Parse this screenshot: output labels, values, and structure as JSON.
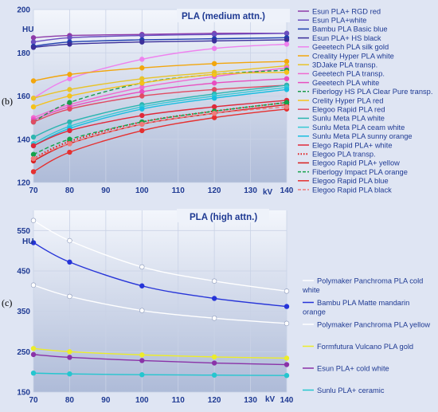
{
  "chart_data": [
    {
      "type": "line",
      "panel_label": "(b)",
      "title": "PLA (medium attn.)",
      "ylabel": "HU",
      "xlabel": "kV",
      "x": [
        70,
        80,
        100,
        120,
        140
      ],
      "xlim": [
        70,
        140
      ],
      "ylim": [
        120,
        200
      ],
      "yticks": [
        120,
        140,
        160,
        180,
        200
      ],
      "xticks": [
        70,
        80,
        90,
        100,
        110,
        120,
        130,
        140
      ],
      "grid": true,
      "legend_position": "right",
      "series": [
        {
          "name": "Esun PLA+ RGD red",
          "color": "#8e3aa8",
          "dash": "solid",
          "values": [
            187,
            188,
            188.5,
            189,
            189
          ]
        },
        {
          "name": "Esun PLA+white",
          "color": "#6a4fc0",
          "dash": "solid",
          "values": [
            185,
            187,
            188,
            188.5,
            189
          ]
        },
        {
          "name": "Bambu PLA Basic blue",
          "color": "#1f3fae",
          "dash": "solid",
          "values": [
            183,
            185,
            186,
            186.5,
            187
          ]
        },
        {
          "name": "Esun PLA+ HS black",
          "color": "#3a2e9a",
          "dash": "solid",
          "values": [
            182.5,
            184,
            185,
            185.5,
            186
          ]
        },
        {
          "name": "Geeetech PLA silk gold",
          "color": "#ee82ee",
          "dash": "solid",
          "values": [
            159,
            168,
            177,
            182,
            184
          ]
        },
        {
          "name": "Creality Hyper PLA white",
          "color": "#f2a60d",
          "dash": "solid",
          "values": [
            167,
            170,
            173,
            175,
            176
          ]
        },
        {
          "name": "3DJake PLA transp.",
          "color": "#e8c32a",
          "dash": "solid",
          "values": [
            159,
            163,
            168,
            171,
            174
          ]
        },
        {
          "name": "Geeetech PLA transp.",
          "color": "#f06ad0",
          "dash": "solid",
          "values": [
            150,
            156,
            164,
            169,
            173
          ]
        },
        {
          "name": "Geeetech PLA white",
          "color": "#e84ec0",
          "dash": "solid",
          "values": [
            149,
            155,
            162,
            166,
            168
          ]
        },
        {
          "name": "Fiberlogy HS PLA Clear Pure transp.",
          "color": "#1a9a4a",
          "dash": "dashed",
          "values": [
            148,
            157,
            166,
            170,
            172
          ]
        },
        {
          "name": "Crelity Hyper PLA red",
          "color": "#f5c21b",
          "dash": "solid",
          "values": [
            155,
            160,
            166,
            170,
            171
          ]
        },
        {
          "name": "Elegoo Rapid PLA red",
          "color": "#e04b63",
          "dash": "solid",
          "values": [
            148,
            154,
            160,
            163,
            165
          ]
        },
        {
          "name": "Sunlu Meta PLA white",
          "color": "#2cb5b0",
          "dash": "solid",
          "values": [
            141,
            148,
            156,
            161,
            165
          ]
        },
        {
          "name": "Sunlu Meta PLA ceam white",
          "color": "#35c9d4",
          "dash": "solid",
          "values": [
            138,
            146,
            155,
            160,
            164
          ]
        },
        {
          "name": "Sunlu Meta PLA sunny orange",
          "color": "#19bde0",
          "dash": "solid",
          "values": [
            137,
            145,
            154,
            159,
            163
          ]
        },
        {
          "name": "Elego Rapid PLA+ white",
          "color": "#e0283a",
          "dash": "solid",
          "values": [
            137,
            144,
            151,
            155,
            158
          ]
        },
        {
          "name": "Elegoo PLA transp.",
          "color": "#e01b1b",
          "dash": "dotted",
          "values": [
            131,
            139,
            148,
            153,
            157
          ]
        },
        {
          "name": "Elegoo Rapid PLA+ yellow",
          "color": "#d81e1e",
          "dash": "solid",
          "values": [
            130,
            138,
            147,
            152,
            156
          ]
        },
        {
          "name": "Fiberlogy Impact PLA orange",
          "color": "#13a34a",
          "dash": "dashed",
          "values": [
            133,
            140,
            148,
            153,
            157
          ]
        },
        {
          "name": "Elegoo Rapid PLA blue",
          "color": "#e53030",
          "dash": "solid",
          "values": [
            125,
            134,
            144,
            150,
            154
          ]
        },
        {
          "name": "Elegoo Rapid PLA black",
          "color": "#f07a7a",
          "dash": "dashed",
          "values": [
            131,
            138,
            147,
            152,
            155
          ]
        }
      ]
    },
    {
      "type": "line",
      "panel_label": "(c)",
      "title": "PLA (high attn.)",
      "ylabel": "HU",
      "xlabel": "kV",
      "x": [
        70,
        80,
        100,
        120,
        140
      ],
      "xlim": [
        70,
        140
      ],
      "ylim": [
        150,
        600
      ],
      "yticks": [
        150,
        250,
        350,
        450,
        550
      ],
      "xticks": [
        70,
        80,
        90,
        100,
        110,
        120,
        130,
        140
      ],
      "grid": true,
      "legend_position": "right",
      "series": [
        {
          "name": "Polymaker Panchroma PLA cold white",
          "color": "#ffffff",
          "dash": "solid",
          "values": [
            575,
            525,
            460,
            425,
            400
          ]
        },
        {
          "name": "Bambu PLA Matte mandarin orange",
          "color": "#2634d8",
          "dash": "solid",
          "values": [
            520,
            472,
            413,
            382,
            362
          ]
        },
        {
          "name": "Polymaker Panchroma PLA yellow",
          "color": "#ffffff",
          "dash": "solid",
          "values": [
            415,
            387,
            352,
            333,
            320
          ]
        },
        {
          "name": "Formfutura Vulcano PLA gold",
          "color": "#ecec2a",
          "dash": "solid",
          "values": [
            258,
            250,
            242,
            237,
            234
          ]
        },
        {
          "name": "Esun PLA+ cold white",
          "color": "#8a32a8",
          "dash": "solid",
          "values": [
            243,
            236,
            228,
            222,
            218
          ]
        },
        {
          "name": "Sunlu PLA+ ceramic",
          "color": "#25c6cf",
          "dash": "solid",
          "values": [
            197,
            195,
            193,
            192,
            191
          ]
        }
      ]
    }
  ]
}
